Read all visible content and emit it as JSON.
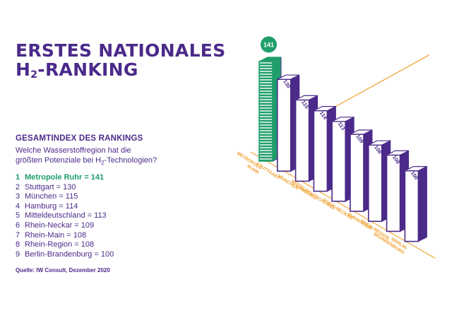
{
  "title_line1": "ERSTES NATIONALES",
  "title_line2_prefix": "H",
  "title_line2_sub": "2",
  "title_line2_suffix": "-RANKING",
  "subheading": "GESAMTINDEX DES RANKINGS",
  "question_line1": "Welche Wasserstoffregion hat die",
  "question_line2_prefix": "größten Potenziale bei H",
  "question_line2_sub": "2",
  "question_line2_suffix": "-Technologien?",
  "ranking": [
    {
      "rank": "1",
      "text": "Metropole Ruhr = 141"
    },
    {
      "rank": "2",
      "text": "Stuttgart = 130"
    },
    {
      "rank": "3",
      "text": "München = 115"
    },
    {
      "rank": "4",
      "text": "Hamburg = 114"
    },
    {
      "rank": "5",
      "text": "Mitteldeutschland = 113"
    },
    {
      "rank": "6",
      "text": "Rhein-Neckar = 109"
    },
    {
      "rank": "7",
      "text": "Rhein-Main = 108"
    },
    {
      "rank": "8",
      "text": "Rhein-Region = 108"
    },
    {
      "rank": "9",
      "text": "Berlin-Brandenburg = 100"
    }
  ],
  "source": "Quelle: IW Consult, Dezember 2020",
  "colors": {
    "purple": "#4b2a8a",
    "green": "#1f9e6a",
    "orange": "#f0a030"
  },
  "chart_data": {
    "type": "bar",
    "style": "isometric-3d",
    "categories": [
      [
        "METROPOLE",
        "RUHR"
      ],
      [
        "STUTTGART"
      ],
      [
        "MÜNCHEN"
      ],
      [
        "HAMBURG"
      ],
      [
        "MITTELDEUTSCHLAND"
      ],
      [
        "RHEIN-NECKAR"
      ],
      [
        "RHEIN-MAIN"
      ],
      [
        "RHEIN-REGION"
      ],
      [
        "BERLIN-",
        "BRANDENBURG"
      ]
    ],
    "values": [
      141,
      130,
      115,
      114,
      113,
      109,
      108,
      108,
      100
    ],
    "data_labels": [
      "141",
      "130",
      "115",
      "114",
      "113",
      "109",
      "108",
      "108",
      "100"
    ],
    "highlight_index": 0,
    "reference_value": 114,
    "legend": "none",
    "grid": false
  }
}
